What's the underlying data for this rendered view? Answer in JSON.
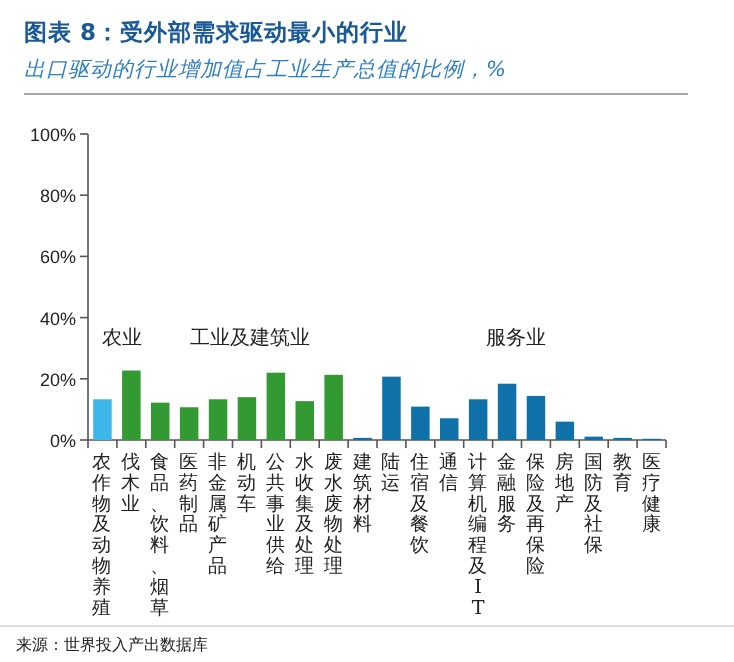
{
  "chart_data": {
    "type": "bar",
    "title": "图表 8：受外部需求驱动最小的行业",
    "subtitle": "出口驱动的行业增加值占工业生产总值的比例，%",
    "categories": [
      "农作物及动物养殖",
      "伐木业",
      "食品、饮料、烟草",
      "医药制品",
      "非金属矿产品",
      "机动车",
      "公共事业供给",
      "水收集及处理",
      "废水废物处理",
      "建筑材料",
      "陆运",
      "住宿及餐饮",
      "通信",
      "计算机编程及IT",
      "金融服务",
      "保险及再保险",
      "房地产",
      "国防及社保",
      "教育",
      "医疗健康"
    ],
    "values": [
      13.3,
      22.7,
      12.2,
      10.7,
      13.3,
      14,
      22,
      12.7,
      21.3,
      0.7,
      20.7,
      10.9,
      7.1,
      13.3,
      18.4,
      14.4,
      6,
      1.1,
      0.7,
      0.4
    ],
    "colors": [
      "#3fb6ea",
      "#339933",
      "#339933",
      "#339933",
      "#339933",
      "#339933",
      "#339933",
      "#339933",
      "#339933",
      "#1070a8",
      "#1070a8",
      "#1070a8",
      "#1070a8",
      "#1070a8",
      "#1070a8",
      "#1070a8",
      "#1070a8",
      "#1070a8",
      "#1070a8",
      "#1070a8"
    ],
    "ylim": [
      0,
      100
    ],
    "yticks": [
      {
        "value": 0,
        "label": "0%"
      },
      {
        "value": 20,
        "label": "20%"
      },
      {
        "value": 40,
        "label": "40%"
      },
      {
        "value": 60,
        "label": "60%"
      },
      {
        "value": 80,
        "label": "80%"
      },
      {
        "value": 100,
        "label": "100%"
      }
    ],
    "grid": false,
    "annotations": [
      "农业",
      "工业及建筑业",
      "服务业",
      "来源：世界投入产出数据库"
    ]
  }
}
